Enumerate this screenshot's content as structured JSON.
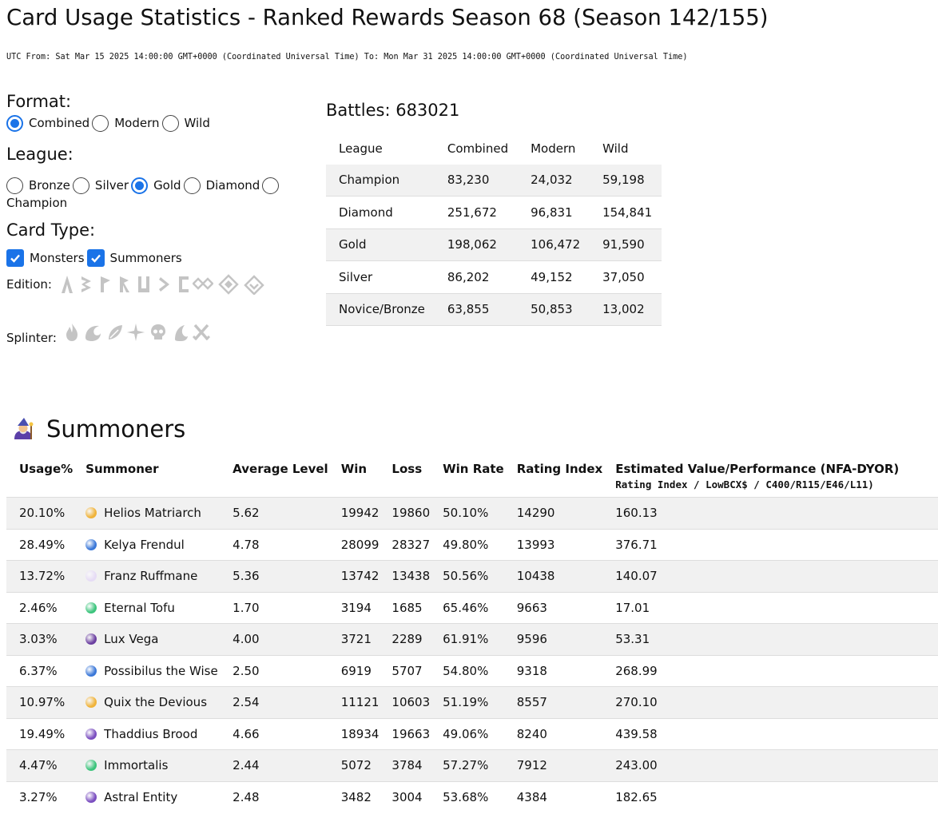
{
  "page": {
    "title": "Card Usage Statistics - Ranked Rewards Season 68 (Season 142/155)",
    "date_range": "UTC From: Sat Mar 15 2025 14:00:00 GMT+0000 (Coordinated Universal Time) To: Mon Mar 31 2025 14:00:00 GMT+0000 (Coordinated Universal Time)"
  },
  "filters": {
    "format": {
      "label": "Format:",
      "options": [
        "Combined",
        "Modern",
        "Wild"
      ],
      "selected": "Combined"
    },
    "league": {
      "label": "League:",
      "options": [
        "Bronze",
        "Silver",
        "Gold",
        "Diamond",
        "Champion"
      ],
      "selected": "Gold"
    },
    "card_type": {
      "label": "Card Type:",
      "options": [
        "Monsters",
        "Summoners"
      ],
      "checked": [
        "Monsters",
        "Summoners"
      ]
    },
    "edition": {
      "label": "Edition:",
      "icons": [
        "alpha-edition-icon",
        "beta-edition-icon",
        "promo-edition-icon",
        "reward-edition-icon",
        "untamed-edition-icon",
        "dice-edition-icon",
        "gladius-edition-icon",
        "chaos-legion-edition-icon",
        "rift-watchers-edition-icon",
        "rebellion-edition-icon"
      ]
    },
    "splinter": {
      "label": "Splinter:",
      "icons": [
        "fire-splinter-icon",
        "water-splinter-icon",
        "earth-splinter-icon",
        "life-splinter-icon",
        "death-splinter-icon",
        "dragon-splinter-icon",
        "neutral-splinter-icon"
      ]
    },
    "icon_color": "#c4c4c4",
    "accent_color": "#1a73e8"
  },
  "battles": {
    "label": "Battles:",
    "total": "683021",
    "columns": [
      "League",
      "Combined",
      "Modern",
      "Wild"
    ],
    "rows": [
      [
        "Champion",
        "83,230",
        "24,032",
        "59,198"
      ],
      [
        "Diamond",
        "251,672",
        "96,831",
        "154,841"
      ],
      [
        "Gold",
        "198,062",
        "106,472",
        "91,590"
      ],
      [
        "Silver",
        "86,202",
        "49,152",
        "37,050"
      ],
      [
        "Novice/Bronze",
        "63,855",
        "50,853",
        "13,002"
      ]
    ]
  },
  "summoners": {
    "heading": "Summoners",
    "heading_icon": "wizard-icon",
    "columns": [
      "Usage%",
      "Summoner",
      "Average Level",
      "Win",
      "Loss",
      "Win Rate",
      "Rating Index",
      "Estimated Value/Performance (NFA-DYOR)"
    ],
    "value_subheader": "Rating Index / LowBCX$ / C400/R115/E46/L11)",
    "rows": [
      {
        "usage": "20.10%",
        "name": "Helios Matriarch",
        "color": "#f0b33a",
        "avg_level": "5.62",
        "win": "19942",
        "loss": "19860",
        "win_rate": "50.10%",
        "rating_index": "14290",
        "value": "160.13"
      },
      {
        "usage": "28.49%",
        "name": "Kelya Frendul",
        "color": "#3b78d8",
        "avg_level": "4.78",
        "win": "28099",
        "loss": "28327",
        "win_rate": "49.80%",
        "rating_index": "13993",
        "value": "376.71"
      },
      {
        "usage": "13.72%",
        "name": "Franz Ruffmane",
        "color": "#e6dcf5",
        "avg_level": "5.36",
        "win": "13742",
        "loss": "13438",
        "win_rate": "50.56%",
        "rating_index": "10438",
        "value": "140.07"
      },
      {
        "usage": "2.46%",
        "name": "Eternal Tofu",
        "color": "#3cc47c",
        "avg_level": "1.70",
        "win": "3194",
        "loss": "1685",
        "win_rate": "65.46%",
        "rating_index": "9663",
        "value": "17.01"
      },
      {
        "usage": "3.03%",
        "name": "Lux Vega",
        "color": "#6b3fa0",
        "avg_level": "4.00",
        "win": "3721",
        "loss": "2289",
        "win_rate": "61.91%",
        "rating_index": "9596",
        "value": "53.31"
      },
      {
        "usage": "6.37%",
        "name": "Possibilus the Wise",
        "color": "#3b78d8",
        "avg_level": "2.50",
        "win": "6919",
        "loss": "5707",
        "win_rate": "54.80%",
        "rating_index": "9318",
        "value": "268.99"
      },
      {
        "usage": "10.97%",
        "name": "Quix the Devious",
        "color": "#f0b33a",
        "avg_level": "2.54",
        "win": "11121",
        "loss": "10603",
        "win_rate": "51.19%",
        "rating_index": "8557",
        "value": "270.10"
      },
      {
        "usage": "19.49%",
        "name": "Thaddius Brood",
        "color": "#7b4fc0",
        "avg_level": "4.66",
        "win": "18934",
        "loss": "19663",
        "win_rate": "49.06%",
        "rating_index": "8240",
        "value": "439.58"
      },
      {
        "usage": "4.47%",
        "name": "Immortalis",
        "color": "#3cc47c",
        "avg_level": "2.44",
        "win": "5072",
        "loss": "3784",
        "win_rate": "57.27%",
        "rating_index": "7912",
        "value": "243.00"
      },
      {
        "usage": "3.27%",
        "name": "Astral Entity",
        "color": "#7b4fc0",
        "avg_level": "2.48",
        "win": "3482",
        "loss": "3004",
        "win_rate": "53.68%",
        "rating_index": "4384",
        "value": "182.65"
      }
    ]
  }
}
